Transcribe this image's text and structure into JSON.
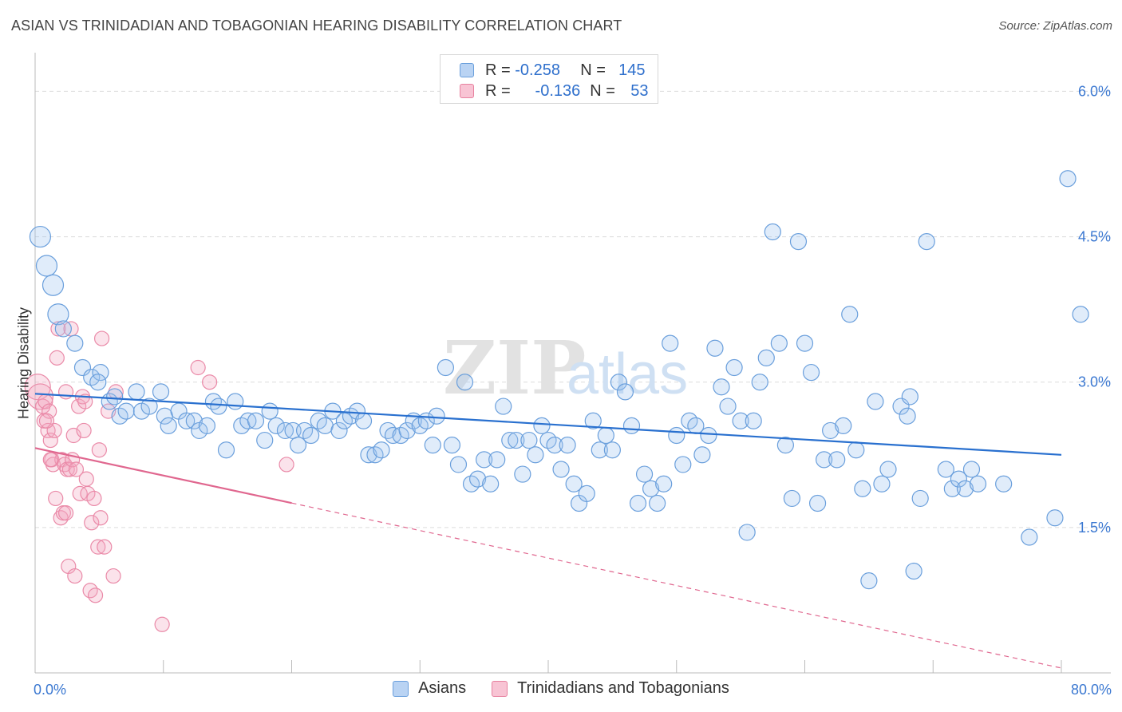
{
  "title": "ASIAN VS TRINIDADIAN AND TOBAGONIAN HEARING DISABILITY CORRELATION CHART",
  "source": "Source: ZipAtlas.com",
  "watermark": "ZIPatlas",
  "legend": {
    "r_label": "R =",
    "n_label": "N =",
    "entries": [
      {
        "r": "-0.258",
        "n": "145"
      },
      {
        "r": "-0.136",
        "n": "53"
      }
    ]
  },
  "chart_data": {
    "type": "scatter",
    "title": "ASIAN VS TRINIDADIAN AND TOBAGONIAN HEARING DISABILITY CORRELATION CHART",
    "xlabel": "",
    "ylabel": "Hearing Disability",
    "xlim": [
      0,
      80
    ],
    "ylim": [
      0,
      6.3
    ],
    "x_tick_labels": [
      "0.0%",
      "80.0%"
    ],
    "y_ticks": [
      1.5,
      3.0,
      4.5,
      6.0
    ],
    "y_tick_labels": [
      "1.5%",
      "3.0%",
      "4.5%",
      "6.0%"
    ],
    "colors": {
      "Asians": "#6a9fdc",
      "Trinidadians and Tobagonians": "#e7819f",
      "asian_line": "#2970cf",
      "trini_line": "#e0678f"
    },
    "series": [
      {
        "name": "Asians",
        "trend": {
          "x0": 0,
          "y0": 2.88,
          "x1": 80,
          "y1": 2.25
        },
        "points": [
          [
            0.4,
            4.5
          ],
          [
            0.9,
            4.2
          ],
          [
            1.4,
            4.0
          ],
          [
            1.8,
            3.7
          ],
          [
            2.2,
            3.55
          ],
          [
            3.1,
            3.4
          ],
          [
            3.7,
            3.15
          ],
          [
            4.4,
            3.05
          ],
          [
            5.1,
            3.1
          ],
          [
            4.9,
            3.0
          ],
          [
            5.8,
            2.8
          ],
          [
            6.2,
            2.85
          ],
          [
            6.6,
            2.65
          ],
          [
            7.1,
            2.7
          ],
          [
            7.9,
            2.9
          ],
          [
            8.3,
            2.7
          ],
          [
            8.9,
            2.75
          ],
          [
            9.8,
            2.9
          ],
          [
            10.1,
            2.65
          ],
          [
            10.4,
            2.55
          ],
          [
            11.2,
            2.7
          ],
          [
            11.8,
            2.6
          ],
          [
            12.4,
            2.6
          ],
          [
            12.8,
            2.5
          ],
          [
            13.4,
            2.55
          ],
          [
            13.9,
            2.8
          ],
          [
            14.3,
            2.75
          ],
          [
            14.9,
            2.3
          ],
          [
            15.6,
            2.8
          ],
          [
            16.1,
            2.55
          ],
          [
            16.6,
            2.6
          ],
          [
            17.2,
            2.6
          ],
          [
            17.9,
            2.4
          ],
          [
            18.3,
            2.7
          ],
          [
            18.8,
            2.55
          ],
          [
            19.5,
            2.5
          ],
          [
            20.1,
            2.5
          ],
          [
            20.5,
            2.35
          ],
          [
            21.0,
            2.5
          ],
          [
            21.5,
            2.45
          ],
          [
            22.1,
            2.6
          ],
          [
            22.6,
            2.55
          ],
          [
            23.2,
            2.7
          ],
          [
            23.7,
            2.5
          ],
          [
            24.1,
            2.6
          ],
          [
            24.6,
            2.65
          ],
          [
            25.1,
            2.7
          ],
          [
            25.6,
            2.6
          ],
          [
            26.0,
            2.25
          ],
          [
            26.5,
            2.25
          ],
          [
            27.0,
            2.3
          ],
          [
            27.5,
            2.5
          ],
          [
            27.9,
            2.45
          ],
          [
            28.5,
            2.45
          ],
          [
            29.0,
            2.5
          ],
          [
            29.5,
            2.6
          ],
          [
            30.0,
            2.55
          ],
          [
            30.5,
            2.6
          ],
          [
            31.0,
            2.35
          ],
          [
            31.3,
            2.65
          ],
          [
            32.0,
            3.15
          ],
          [
            32.5,
            2.35
          ],
          [
            33.0,
            2.15
          ],
          [
            33.5,
            3.0
          ],
          [
            34.0,
            1.95
          ],
          [
            34.5,
            2.0
          ],
          [
            35.0,
            2.2
          ],
          [
            35.5,
            1.95
          ],
          [
            36.0,
            2.2
          ],
          [
            36.5,
            2.75
          ],
          [
            37.0,
            2.4
          ],
          [
            37.5,
            2.4
          ],
          [
            38.0,
            2.05
          ],
          [
            38.5,
            2.4
          ],
          [
            39.0,
            2.25
          ],
          [
            39.5,
            2.55
          ],
          [
            40.0,
            2.4
          ],
          [
            40.5,
            2.35
          ],
          [
            41.0,
            2.1
          ],
          [
            41.5,
            2.35
          ],
          [
            42.0,
            1.95
          ],
          [
            42.4,
            1.75
          ],
          [
            43.0,
            1.85
          ],
          [
            43.5,
            2.6
          ],
          [
            44.0,
            2.3
          ],
          [
            44.5,
            2.45
          ],
          [
            45.0,
            2.3
          ],
          [
            45.5,
            3.0
          ],
          [
            46.0,
            2.9
          ],
          [
            46.5,
            2.55
          ],
          [
            47.0,
            1.75
          ],
          [
            47.5,
            2.05
          ],
          [
            48.0,
            1.9
          ],
          [
            48.5,
            1.75
          ],
          [
            49.0,
            1.95
          ],
          [
            49.5,
            3.4
          ],
          [
            50.0,
            2.45
          ],
          [
            50.5,
            2.15
          ],
          [
            51.0,
            2.6
          ],
          [
            51.5,
            2.55
          ],
          [
            52.0,
            2.25
          ],
          [
            52.5,
            2.45
          ],
          [
            53.0,
            3.35
          ],
          [
            53.5,
            2.95
          ],
          [
            54.0,
            2.75
          ],
          [
            54.5,
            3.15
          ],
          [
            55.0,
            2.6
          ],
          [
            55.5,
            1.45
          ],
          [
            56.0,
            2.6
          ],
          [
            56.5,
            3.0
          ],
          [
            57.0,
            3.25
          ],
          [
            57.5,
            4.55
          ],
          [
            58.0,
            3.4
          ],
          [
            58.5,
            2.35
          ],
          [
            59.0,
            1.8
          ],
          [
            59.5,
            4.45
          ],
          [
            60.0,
            3.4
          ],
          [
            60.5,
            3.1
          ],
          [
            61.0,
            1.75
          ],
          [
            61.5,
            2.2
          ],
          [
            62.0,
            2.5
          ],
          [
            62.5,
            2.2
          ],
          [
            63.0,
            2.55
          ],
          [
            63.5,
            3.7
          ],
          [
            64.0,
            2.3
          ],
          [
            64.5,
            1.9
          ],
          [
            65.0,
            0.95
          ],
          [
            65.5,
            2.8
          ],
          [
            66.0,
            1.95
          ],
          [
            66.5,
            2.1
          ],
          [
            67.5,
            2.75
          ],
          [
            68.0,
            2.65
          ],
          [
            68.2,
            2.85
          ],
          [
            68.5,
            1.05
          ],
          [
            69.0,
            1.8
          ],
          [
            69.5,
            4.45
          ],
          [
            71.0,
            2.1
          ],
          [
            71.5,
            1.9
          ],
          [
            72.0,
            2.0
          ],
          [
            72.5,
            1.9
          ],
          [
            73.0,
            2.1
          ],
          [
            73.5,
            1.95
          ],
          [
            75.5,
            1.95
          ],
          [
            77.5,
            1.4
          ],
          [
            79.5,
            1.6
          ],
          [
            80.5,
            5.1
          ],
          [
            81.5,
            3.7
          ]
        ]
      },
      {
        "name": "Trinidadians and Tobagonians",
        "trend": {
          "x0": 0,
          "y0": 2.32,
          "x1": 80,
          "y1": 0.05,
          "solid_until_x": 20
        },
        "points": [
          [
            0.2,
            2.95
          ],
          [
            0.4,
            2.85
          ],
          [
            0.6,
            2.75
          ],
          [
            0.7,
            2.6
          ],
          [
            0.8,
            2.8
          ],
          [
            1.0,
            2.5
          ],
          [
            1.1,
            2.7
          ],
          [
            1.2,
            2.4
          ],
          [
            1.3,
            2.2
          ],
          [
            1.4,
            2.15
          ],
          [
            1.5,
            2.5
          ],
          [
            1.6,
            1.8
          ],
          [
            1.7,
            3.25
          ],
          [
            1.8,
            3.55
          ],
          [
            2.0,
            1.6
          ],
          [
            2.1,
            2.2
          ],
          [
            2.2,
            1.65
          ],
          [
            2.3,
            2.15
          ],
          [
            2.4,
            2.9
          ],
          [
            2.5,
            2.1
          ],
          [
            2.6,
            1.1
          ],
          [
            2.7,
            2.1
          ],
          [
            2.8,
            3.55
          ],
          [
            2.9,
            2.2
          ],
          [
            3.0,
            2.45
          ],
          [
            3.1,
            1.0
          ],
          [
            3.2,
            2.1
          ],
          [
            3.4,
            2.75
          ],
          [
            3.5,
            1.85
          ],
          [
            3.7,
            2.85
          ],
          [
            3.8,
            2.5
          ],
          [
            3.9,
            2.8
          ],
          [
            4.0,
            2.0
          ],
          [
            4.1,
            1.85
          ],
          [
            4.3,
            0.85
          ],
          [
            4.4,
            1.55
          ],
          [
            4.6,
            1.8
          ],
          [
            4.7,
            0.8
          ],
          [
            4.9,
            1.3
          ],
          [
            5.0,
            2.3
          ],
          [
            5.1,
            1.6
          ],
          [
            5.2,
            3.45
          ],
          [
            5.4,
            1.3
          ],
          [
            5.7,
            2.7
          ],
          [
            6.1,
            1.0
          ],
          [
            6.3,
            2.9
          ],
          [
            9.9,
            0.5
          ],
          [
            12.7,
            3.15
          ],
          [
            13.6,
            3.0
          ],
          [
            19.6,
            2.15
          ],
          [
            2.4,
            1.65
          ],
          [
            1.2,
            2.2
          ],
          [
            0.9,
            2.6
          ]
        ]
      }
    ]
  }
}
